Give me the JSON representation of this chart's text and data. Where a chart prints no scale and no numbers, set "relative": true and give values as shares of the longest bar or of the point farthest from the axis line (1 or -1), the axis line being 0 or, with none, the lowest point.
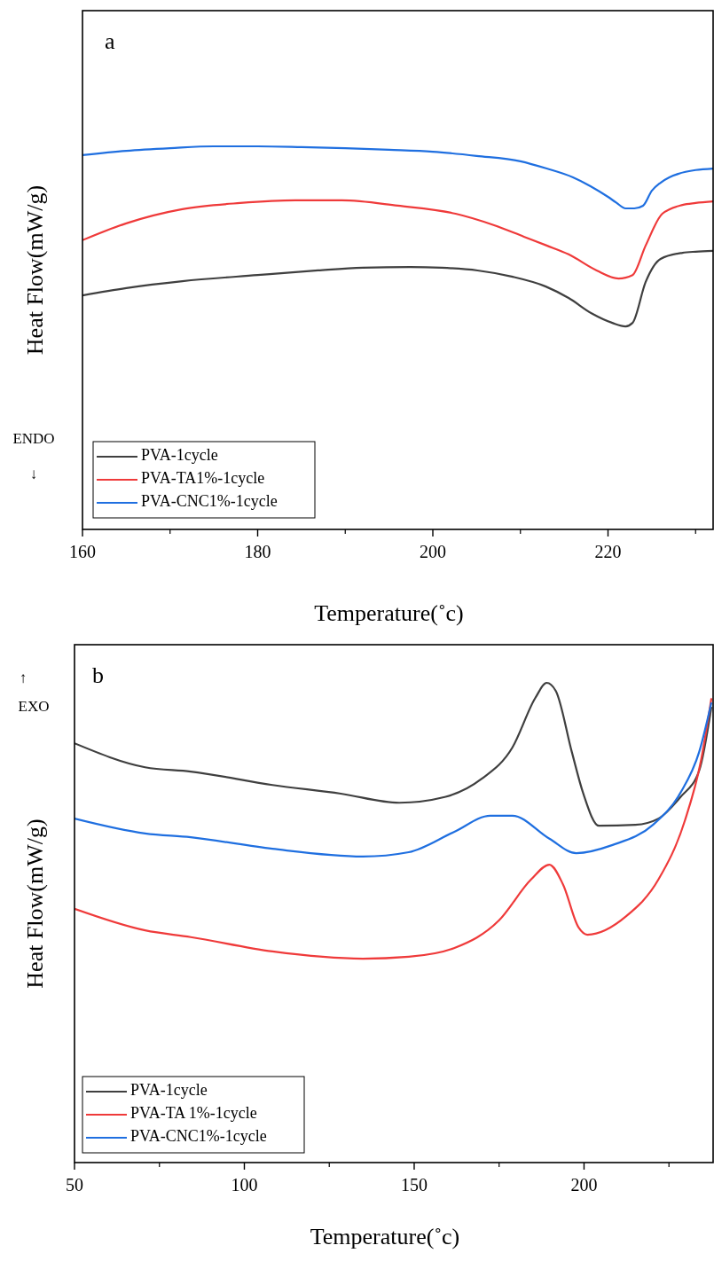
{
  "chart_data": [
    {
      "type": "line",
      "relative": true,
      "xlabel": "Temperature(˚c)",
      "ylabel": "Heat Flow(mW/g)",
      "annotations": [
        "a",
        "ENDO",
        "↓"
      ],
      "xlim": [
        160,
        232
      ],
      "xticks": [
        160,
        180,
        200,
        220
      ],
      "legend": "bottom left",
      "series": [
        {
          "name": "PVA-1cycle",
          "color": "#3f3f3f",
          "x": [
            160,
            165,
            171.4,
            180,
            186.9,
            192,
            197.4,
            201,
            205.1,
            209,
            212.9,
            215.5,
            218.2,
            220.5,
            222,
            222.8,
            224.3,
            226,
            228.5,
            230,
            232
          ],
          "values": [
            0.611,
            0.63,
            0.648,
            0.664,
            0.676,
            0.683,
            0.685,
            0.683,
            0.676,
            0.66,
            0.634,
            0.604,
            0.563,
            0.539,
            0.53,
            0.539,
            0.646,
            0.706,
            0.722,
            0.725,
            0.727
          ]
        },
        {
          "name": "PVA-TA1%-1cycle",
          "color": "#ef3a3a",
          "x": [
            160,
            165,
            171.4,
            178,
            184.3,
            189.6,
            196,
            202.6,
            207,
            210.4,
            213,
            215.5,
            218.7,
            221.2,
            222.8,
            224.3,
            226.2,
            228.5,
            230,
            232
          ],
          "values": [
            0.755,
            0.799,
            0.836,
            0.852,
            0.859,
            0.859,
            0.845,
            0.824,
            0.794,
            0.764,
            0.741,
            0.718,
            0.676,
            0.655,
            0.664,
            0.741,
            0.824,
            0.847,
            0.852,
            0.856
          ]
        },
        {
          "name": "PVA-CNC1%-1cycle",
          "color": "#1f6fe0",
          "x": [
            160,
            165,
            170,
            175,
            180,
            185,
            190,
            195,
            200,
            205,
            210,
            213,
            216,
            218,
            220,
            221,
            222,
            223,
            224,
            225,
            226,
            227,
            228,
            230,
            232
          ],
          "values": [
            0.977,
            0.988,
            0.995,
            1,
            1,
            0.998,
            0.995,
            0.991,
            0.986,
            0.975,
            0.961,
            0.942,
            0.919,
            0.896,
            0.868,
            0.852,
            0.838,
            0.838,
            0.845,
            0.884,
            0.905,
            0.919,
            0.928,
            0.938,
            0.942
          ]
        }
      ]
    },
    {
      "type": "line",
      "relative": true,
      "xlabel": "Temperature(˚c)",
      "ylabel": "Heat Flow(mW/g)",
      "annotations": [
        "b",
        "↑",
        "EXO"
      ],
      "xlim": [
        50,
        238
      ],
      "xticks": [
        50,
        100,
        150,
        200
      ],
      "legend": "bottom left",
      "series": [
        {
          "name": "PVA-1cycle",
          "color": "#3f3f3f",
          "x": [
            50,
            70.8,
            84.2,
            108.3,
            128.4,
            145.6,
            159,
            169.7,
            178.9,
            185.7,
            189,
            191.7,
            196.4,
            199.7,
            204.4,
            215.1,
            221.9,
            228.4,
            233.9,
            237.5
          ],
          "values": [
            0.874,
            0.824,
            0.815,
            0.787,
            0.769,
            0.75,
            0.762,
            0.799,
            0.865,
            0.969,
            1,
            0.983,
            0.856,
            0.771,
            0.702,
            0.704,
            0.717,
            0.762,
            0.817,
            0.95
          ]
        },
        {
          "name": "PVA-TA 1%-1cycle",
          "color": "#ef3a3a",
          "x": [
            50,
            70.8,
            84.2,
            108.3,
            134.9,
            148.4,
            161.7,
            175,
            184.4,
            189.8,
            193.8,
            198.4,
            201,
            212.5,
            221.9,
            229.7,
            234.4,
            237.5
          ],
          "values": [
            0.529,
            0.484,
            0.47,
            0.44,
            0.425,
            0.429,
            0.447,
            0.505,
            0.59,
            0.621,
            0.58,
            0.49,
            0.475,
            0.514,
            0.59,
            0.713,
            0.837,
            0.968
          ]
        },
        {
          "name": "PVA-CNC1%-1cycle",
          "color": "#1f6fe0",
          "x": [
            50,
            70.8,
            84.2,
            108.3,
            134.9,
            148.4,
            161.7,
            172.4,
            178.9,
            189.8,
            197.7,
            208.4,
            220.3,
            228.4,
            233.9,
            237.5
          ],
          "values": [
            0.717,
            0.686,
            0.678,
            0.654,
            0.638,
            0.647,
            0.689,
            0.723,
            0.723,
            0.675,
            0.645,
            0.662,
            0.704,
            0.771,
            0.856,
            0.959
          ]
        }
      ]
    }
  ]
}
